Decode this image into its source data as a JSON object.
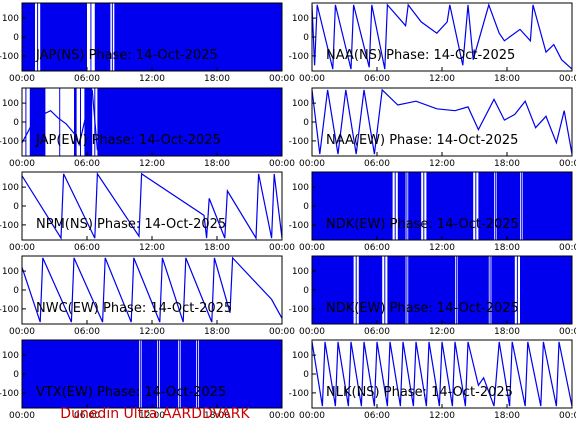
{
  "footer": "Dunedin Ultra AARDDVARK",
  "colors": {
    "trace": "#0000ee",
    "frame": "#000000",
    "footer": "#cc0000"
  },
  "chart_data": [
    {
      "type": "line",
      "title": "JAP(NS) Phase: 14-Oct-2025",
      "x_ticks": [
        "00:00",
        "06:00",
        "12:00",
        "18:00",
        "00:00"
      ],
      "y_ticks": [
        "100",
        "0",
        "-100"
      ],
      "ylim": [
        -180,
        180
      ],
      "style": "dense_filled",
      "gaps": [
        [
          0.05,
          0.07
        ],
        [
          0.25,
          0.28
        ],
        [
          0.34,
          0.355
        ]
      ],
      "series": [
        {
          "x": [],
          "y": []
        }
      ]
    },
    {
      "type": "line",
      "title": "NAA(NS) Phase: 14-Oct-2025",
      "x_ticks": [
        "00:00",
        "06:00",
        "12:00",
        "18:00",
        "00:00"
      ],
      "y_ticks": [
        "100",
        "0",
        "-100"
      ],
      "ylim": [
        -180,
        180
      ],
      "style": "sawtooth",
      "series": [
        {
          "x": [
            0,
            0.01,
            0.02,
            0.08,
            0.09,
            0.15,
            0.16,
            0.22,
            0.23,
            0.28,
            0.29,
            0.36,
            0.37,
            0.42,
            0.48,
            0.52,
            0.53,
            0.58,
            0.6,
            0.62,
            0.68,
            0.72,
            0.74,
            0.8,
            0.84,
            0.85,
            0.9,
            0.93,
            0.96,
            1.0
          ],
          "y": [
            170,
            -150,
            170,
            -170,
            170,
            -170,
            170,
            -160,
            170,
            -170,
            170,
            60,
            170,
            80,
            20,
            80,
            170,
            -150,
            170,
            -120,
            170,
            20,
            -20,
            40,
            -20,
            170,
            -80,
            -40,
            -120,
            -170
          ]
        }
      ]
    },
    {
      "type": "line",
      "title": "JAP(EW) Phase: 14-Oct-2025",
      "x_ticks": [
        "00:00",
        "06:00",
        "12:00",
        "18:00",
        "00:00"
      ],
      "y_ticks": [
        "100",
        "0",
        "-100"
      ],
      "ylim": [
        -180,
        180
      ],
      "style": "dense_filled",
      "gaps": [
        [
          0.0,
          0.03
        ],
        [
          0.09,
          0.2
        ],
        [
          0.21,
          0.24
        ],
        [
          0.27,
          0.29
        ]
      ],
      "series": [
        {
          "x": [
            0.0,
            0.02,
            0.05,
            0.08,
            0.11,
            0.14,
            0.17,
            0.2,
            0.22,
            0.25,
            0.27,
            0.29
          ],
          "y": [
            -110,
            -60,
            20,
            40,
            60,
            20,
            -10,
            -60,
            -120,
            60,
            170,
            -150
          ]
        }
      ]
    },
    {
      "type": "line",
      "title": "NAA(EW) Phase: 14-Oct-2025",
      "x_ticks": [
        "00:00",
        "06:00",
        "12:00",
        "18:00",
        "00:00"
      ],
      "y_ticks": [
        "100",
        "0",
        "-100"
      ],
      "ylim": [
        -180,
        180
      ],
      "style": "sawtooth",
      "series": [
        {
          "x": [
            0,
            0.03,
            0.06,
            0.1,
            0.13,
            0.17,
            0.2,
            0.24,
            0.27,
            0.33,
            0.4,
            0.48,
            0.55,
            0.6,
            0.64,
            0.7,
            0.74,
            0.78,
            0.82,
            0.86,
            0.9,
            0.94,
            0.97,
            1.0
          ],
          "y": [
            170,
            -170,
            170,
            -170,
            170,
            -170,
            170,
            -170,
            170,
            90,
            110,
            70,
            60,
            80,
            -40,
            120,
            10,
            40,
            110,
            -30,
            30,
            -110,
            60,
            -170
          ]
        }
      ]
    },
    {
      "type": "line",
      "title": "NPM(NS) Phase: 14-Oct-2025",
      "x_ticks": [
        "00:00",
        "06:00",
        "12:00",
        "18:00",
        "00:00"
      ],
      "y_ticks": [
        "100",
        "0",
        "-100"
      ],
      "ylim": [
        -180,
        180
      ],
      "style": "sawtooth",
      "series": [
        {
          "x": [
            0,
            0.15,
            0.16,
            0.28,
            0.29,
            0.45,
            0.46,
            0.7,
            0.71,
            0.72,
            0.78,
            0.79,
            0.9,
            0.91,
            0.96,
            0.97,
            1.0
          ],
          "y": [
            160,
            -170,
            170,
            -170,
            170,
            -160,
            170,
            -50,
            -170,
            40,
            -170,
            80,
            -170,
            170,
            -170,
            170,
            -170
          ]
        }
      ]
    },
    {
      "type": "line",
      "title": "NDK(EW) Phase: 14-Oct-2025",
      "x_ticks": [
        "00:00",
        "06:00",
        "12:00",
        "18:00",
        "00:00"
      ],
      "y_ticks": [
        "100",
        "0",
        "-100"
      ],
      "ylim": [
        -180,
        180
      ],
      "style": "dense_filled",
      "gaps": [
        [
          0.31,
          0.33
        ],
        [
          0.36,
          0.37
        ],
        [
          0.42,
          0.44
        ],
        [
          0.62,
          0.64
        ],
        [
          0.7,
          0.71
        ],
        [
          0.8,
          0.81
        ]
      ],
      "series": [
        {
          "x": [],
          "y": []
        }
      ]
    },
    {
      "type": "line",
      "title": "NWC(EW) Phase: 14-Oct-2025",
      "x_ticks": [
        "00:00",
        "06:00",
        "12:00",
        "18:00",
        "00:00"
      ],
      "y_ticks": [
        "100",
        "0",
        "-100"
      ],
      "ylim": [
        -180,
        180
      ],
      "style": "sawtooth",
      "series": [
        {
          "x": [
            0,
            0.07,
            0.08,
            0.19,
            0.2,
            0.31,
            0.32,
            0.42,
            0.43,
            0.53,
            0.54,
            0.62,
            0.63,
            0.73,
            0.74,
            0.8,
            0.81,
            0.96,
            1.0
          ],
          "y": [
            120,
            -170,
            170,
            -170,
            170,
            -170,
            170,
            -170,
            170,
            -170,
            170,
            -170,
            170,
            -170,
            170,
            -120,
            170,
            -50,
            -150
          ]
        }
      ]
    },
    {
      "type": "line",
      "title": "NDK(EW) Phase: 14-Oct-2025",
      "x_ticks": [
        "00:00",
        "06:00",
        "12:00",
        "18:00",
        "00:00"
      ],
      "y_ticks": [
        "100",
        "0",
        "-100"
      ],
      "ylim": [
        -180,
        180
      ],
      "style": "dense_filled",
      "gaps": [
        [
          0.16,
          0.18
        ],
        [
          0.27,
          0.29
        ],
        [
          0.36,
          0.37
        ],
        [
          0.55,
          0.56
        ],
        [
          0.68,
          0.69
        ],
        [
          0.78,
          0.8
        ]
      ],
      "series": [
        {
          "x": [],
          "y": []
        }
      ]
    },
    {
      "type": "line",
      "title": "VTX(EW) Phase: 14-Oct-2025",
      "x_ticks": [
        "00:00",
        "06:00",
        "12:00",
        "18:00",
        "00:00"
      ],
      "y_ticks": [
        "100",
        "0",
        "-100"
      ],
      "ylim": [
        -180,
        180
      ],
      "style": "dense_filled",
      "gaps": [
        [
          0.45,
          0.46
        ],
        [
          0.52,
          0.53
        ],
        [
          0.6,
          0.61
        ],
        [
          0.67,
          0.68
        ]
      ],
      "series": [
        {
          "x": [],
          "y": []
        }
      ]
    },
    {
      "type": "line",
      "title": "NLK(NS) Phase: 14-Oct-2025",
      "x_ticks": [
        "00:00",
        "06:00",
        "12:00",
        "18:00",
        "00:00"
      ],
      "y_ticks": [
        "100",
        "0",
        "-100"
      ],
      "ylim": [
        -180,
        180
      ],
      "style": "sawtooth",
      "series": [
        {
          "x": [
            0,
            0.04,
            0.05,
            0.09,
            0.1,
            0.14,
            0.15,
            0.19,
            0.2,
            0.24,
            0.25,
            0.29,
            0.3,
            0.34,
            0.35,
            0.39,
            0.4,
            0.44,
            0.45,
            0.49,
            0.5,
            0.54,
            0.55,
            0.59,
            0.6,
            0.64,
            0.66,
            0.7,
            0.72,
            0.76,
            0.77,
            0.82,
            0.83,
            0.88,
            0.89,
            0.94,
            0.95,
            1.0
          ],
          "y": [
            170,
            -170,
            170,
            -170,
            170,
            -170,
            170,
            -170,
            170,
            -170,
            170,
            -170,
            170,
            -170,
            170,
            -170,
            170,
            -170,
            170,
            -170,
            170,
            -170,
            170,
            -170,
            170,
            -60,
            -20,
            -170,
            170,
            -170,
            170,
            -170,
            170,
            -170,
            170,
            -170,
            170,
            -170
          ]
        }
      ]
    }
  ]
}
